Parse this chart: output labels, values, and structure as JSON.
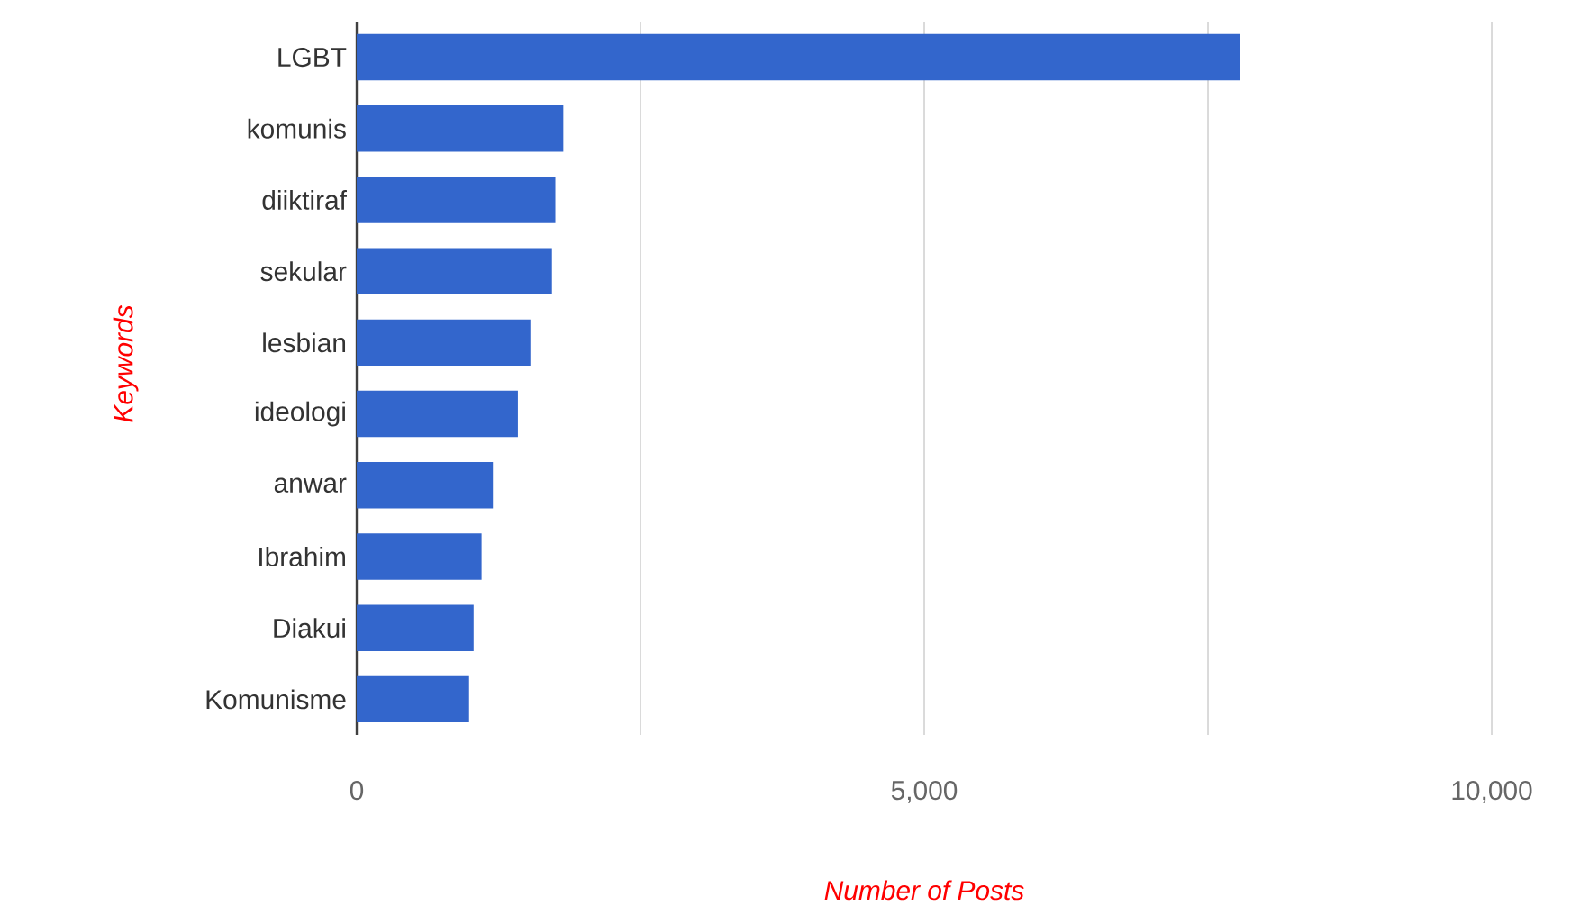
{
  "chart_data": {
    "type": "bar",
    "orientation": "horizontal",
    "xlabel": "Number of Posts",
    "ylabel": "Keywords",
    "categories": [
      "LGBT",
      "komunis",
      "diiktiraf",
      "sekular",
      "lesbian",
      "ideologi",
      "anwar",
      "Ibrahim",
      "Diakui",
      "Komunisme"
    ],
    "values": [
      7780,
      1820,
      1750,
      1720,
      1530,
      1420,
      1200,
      1100,
      1030,
      990
    ],
    "color": "#3366cc",
    "xlim": [
      0,
      10000
    ],
    "xticks": [
      0,
      {
        "value": 2500,
        "label": null
      },
      {
        "value": 5000,
        "label": "5,000"
      },
      {
        "value": 7500,
        "label": null
      },
      {
        "value": 10000,
        "label": "10,000"
      }
    ],
    "grid": "x"
  }
}
